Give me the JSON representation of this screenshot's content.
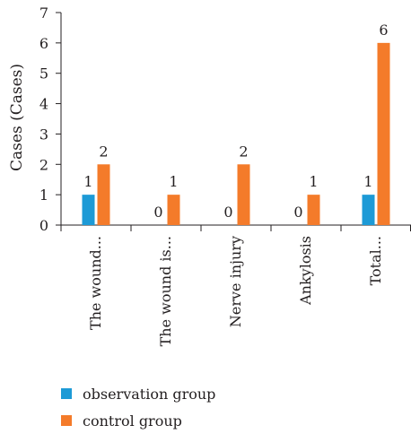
{
  "chart_data": {
    "type": "bar",
    "ylabel": "Cases (Cases)",
    "xlabel": "",
    "title": "",
    "ylim": [
      0,
      7
    ],
    "yticks": [
      0,
      1,
      2,
      3,
      4,
      5,
      6,
      7
    ],
    "grid": false,
    "legend_position": "bottom",
    "categories": [
      "The wound...",
      "The wound is...",
      "Nerve injury",
      "Ankylosis",
      "Total..."
    ],
    "series": [
      {
        "name": "observation group",
        "color": "#1d9ad6",
        "values": [
          1,
          0,
          0,
          0,
          1
        ]
      },
      {
        "name": "control group",
        "color": "#f47b2a",
        "values": [
          2,
          1,
          2,
          1,
          6
        ]
      }
    ]
  }
}
